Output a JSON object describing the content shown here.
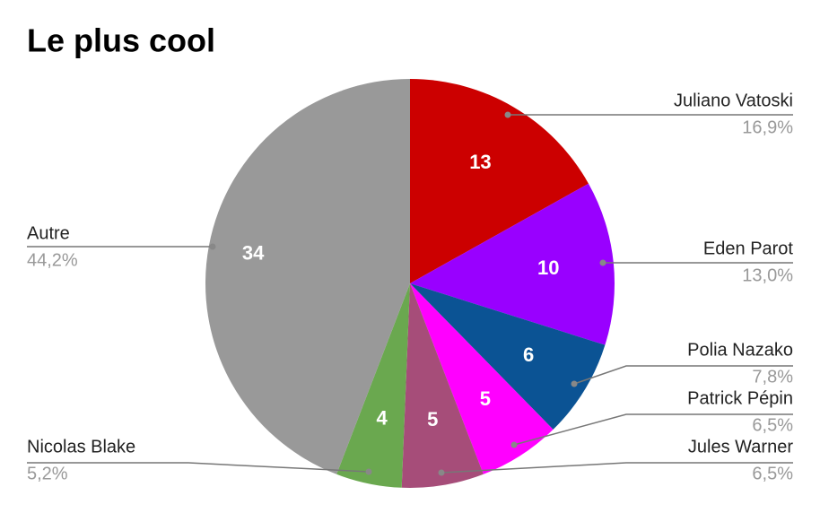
{
  "chart_data": {
    "type": "pie",
    "title": "Le plus cool",
    "categories": [
      "Juliano Vatoski",
      "Eden Parot",
      "Polia Nazako",
      "Patrick Pépin",
      "Jules Warner",
      "Nicolas Blake",
      "Autre"
    ],
    "values": [
      13,
      10,
      6,
      5,
      5,
      4,
      34
    ],
    "percent_labels": [
      "16,9%",
      "13,0%",
      "7,8%",
      "6,5%",
      "6,5%",
      "5,2%",
      "44,2%"
    ],
    "colors": [
      "#cc0000",
      "#9900ff",
      "#0b5394",
      "#ff00ff",
      "#a64d79",
      "#6aa84f",
      "#999999"
    ]
  }
}
